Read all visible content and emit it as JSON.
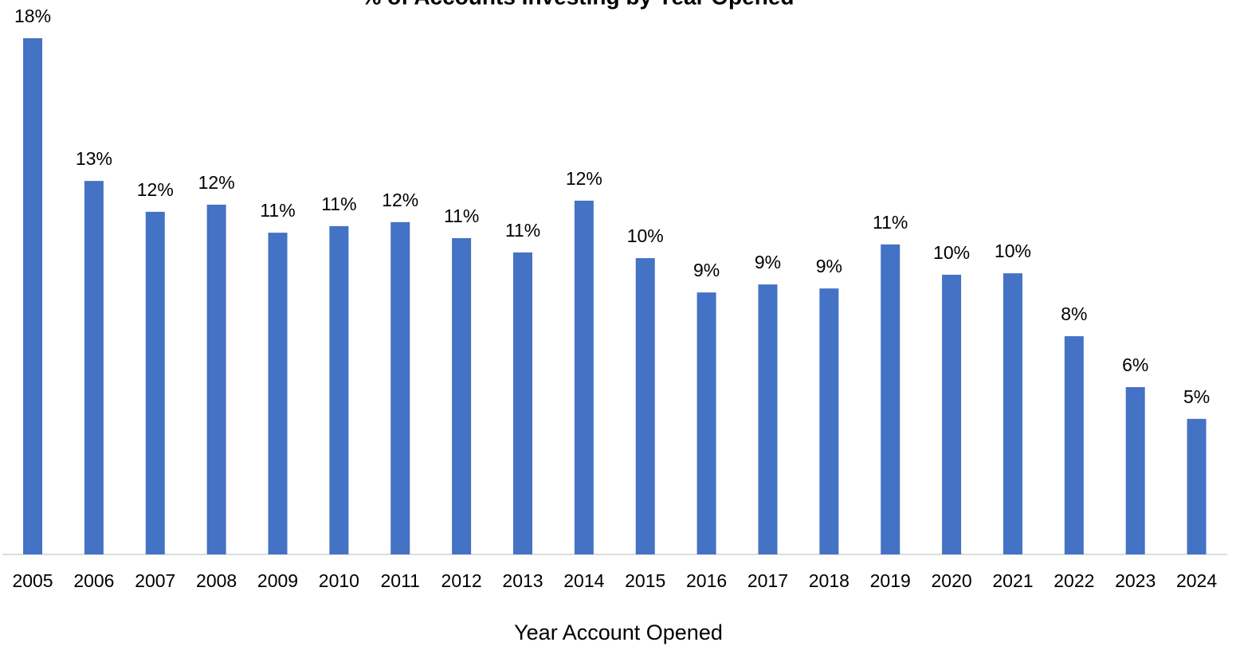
{
  "chart_data": {
    "type": "bar",
    "title": "% of Accounts Investing by Year Opened",
    "x_label": "Year Account Opened",
    "categories": [
      "2005",
      "2006",
      "2007",
      "2008",
      "2009",
      "2010",
      "2011",
      "2012",
      "2013",
      "2014",
      "2015",
      "2016",
      "2017",
      "2018",
      "2019",
      "2020",
      "2021",
      "2022",
      "2023",
      "2024"
    ],
    "values": [
      18.05,
      13.06,
      11.98,
      12.23,
      11.25,
      11.48,
      11.62,
      11.06,
      10.56,
      12.37,
      10.36,
      9.16,
      9.44,
      9.3,
      10.84,
      9.78,
      9.83,
      7.63,
      5.85,
      4.74
    ],
    "value_labels": [
      "18%",
      "13%",
      "12%",
      "12%",
      "11%",
      "11%",
      "12%",
      "11%",
      "11%",
      "12%",
      "10%",
      "9%",
      "9%",
      "9%",
      "11%",
      "10%",
      "10%",
      "8%",
      "6%",
      "5%"
    ],
    "color": "#4472c4",
    "ylim": [
      0,
      18.05
    ]
  }
}
